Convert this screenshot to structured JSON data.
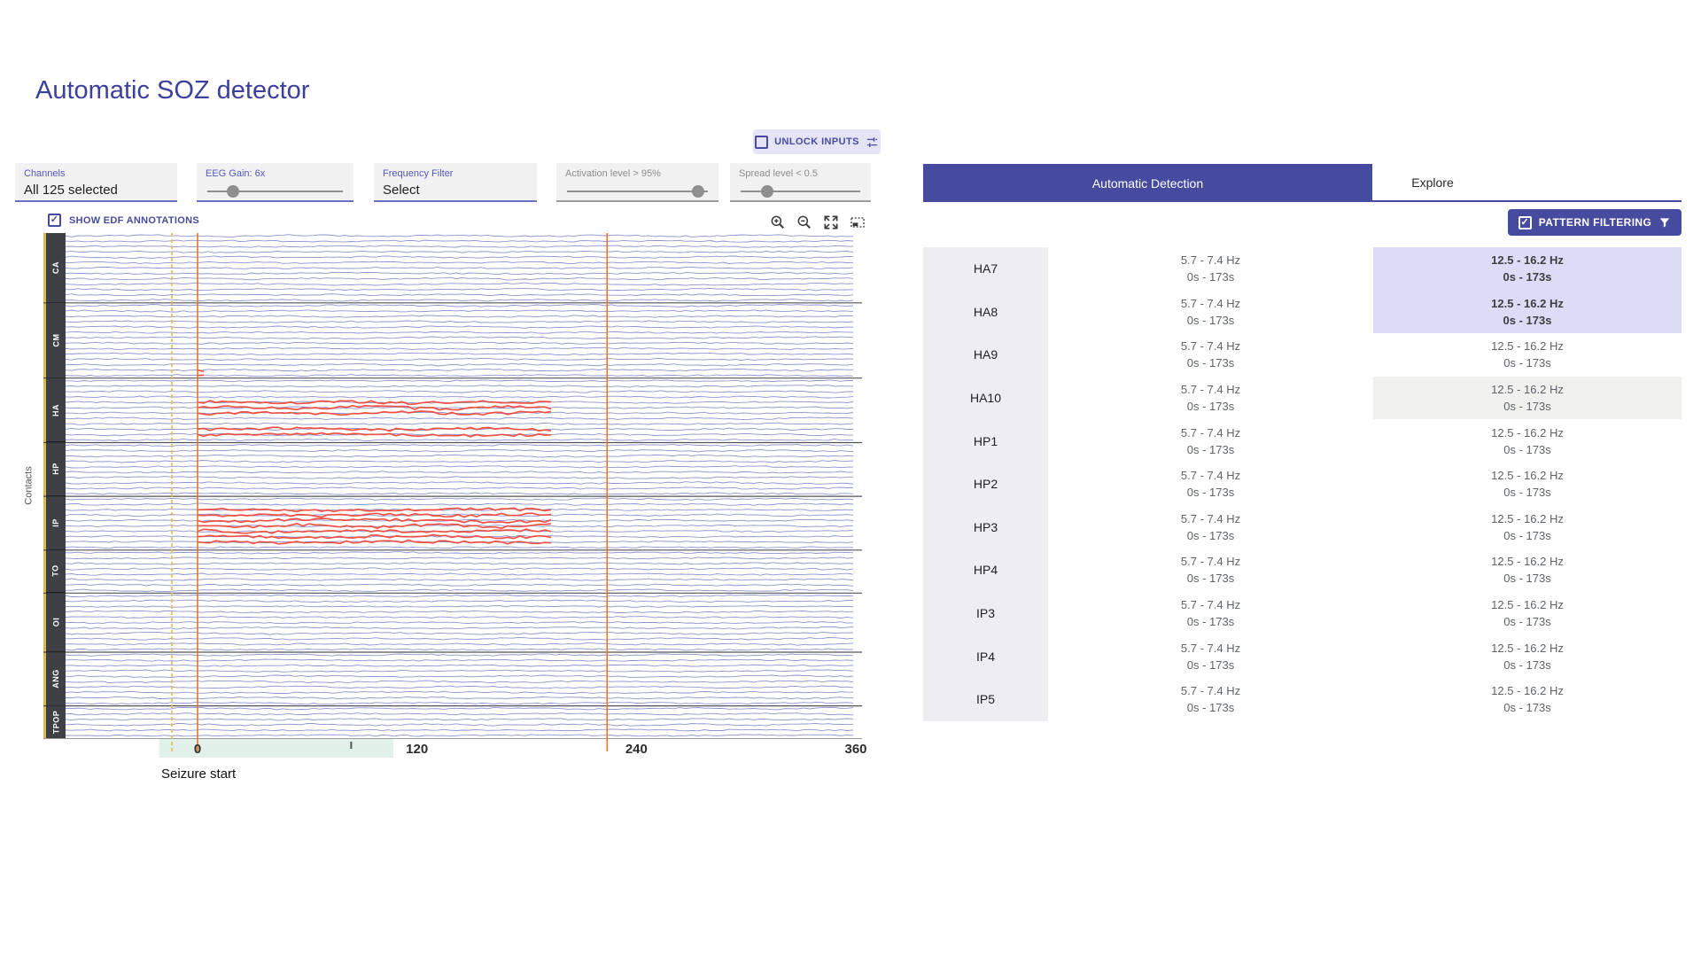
{
  "page": {
    "title": "Automatic SOZ detector"
  },
  "controls": {
    "unlock_button": {
      "label": "UNLOCK INPUTS",
      "checked": false
    },
    "channels": {
      "label": "Channels",
      "value": "All 125 selected"
    },
    "eeg_gain": {
      "label": "EEG Gain: 6x",
      "value_pct": 20
    },
    "frequency_filter": {
      "label": "Frequency Filter",
      "value": "Select"
    },
    "activation_level": {
      "label": "Activation level > 95%",
      "value_pct": 92,
      "disabled": true
    },
    "spread_level": {
      "label": "Spread level < 0.5",
      "value_pct": 23,
      "disabled": true
    },
    "show_edf_annotations": {
      "label": "SHOW EDF ANNOTATIONS",
      "checked": true
    }
  },
  "icons": {
    "unlock_settings": "tune-icon",
    "zoom_in": "zoom-in-icon",
    "zoom_out": "zoom-out-icon",
    "reset_view": "expand-icon",
    "box_select": "box-select-icon",
    "pattern_filter": "funnel-icon"
  },
  "chart_data": {
    "type": "line",
    "title": "",
    "description": "Stacked intracranial EEG traces grouped by electrode; red traces mark detected seizure-onset activity",
    "ylabel": "Contacts",
    "xlabel_annotation": "Seizure start",
    "x_ticks": [
      0,
      120,
      240,
      360
    ],
    "x_range_s": [
      -84,
      363
    ],
    "grid": false,
    "groups": [
      {
        "name": "CA",
        "channels": 13
      },
      {
        "name": "CM",
        "channels": 14
      },
      {
        "name": "HA",
        "channels": 12
      },
      {
        "name": "HP",
        "channels": 10
      },
      {
        "name": "IP",
        "channels": 10
      },
      {
        "name": "TO",
        "channels": 8
      },
      {
        "name": "OI",
        "channels": 11
      },
      {
        "name": "ANG",
        "channels": 10
      },
      {
        "name": "TPOP",
        "channels": 6
      }
    ],
    "markers": [
      {
        "name": "edf-annotation",
        "x_s": -14,
        "style": "dashed",
        "color": "#e2bd45"
      },
      {
        "name": "seizure-start",
        "x_s": 0,
        "style": "solid",
        "color": "#e8742a"
      },
      {
        "name": "event-marker",
        "x_s": 224,
        "style": "solid",
        "color": "#e8742a"
      }
    ],
    "selection_band_s": [
      -21,
      107
    ],
    "selection_tick_s": 84,
    "highlighted_channel_segments": [
      {
        "group": "CM",
        "first_channel_in_group": 12,
        "channel_count": 2,
        "t0_s": 0,
        "t1_s": 6
      },
      {
        "group": "HA",
        "first_channel_in_group": 4,
        "channel_count": 3,
        "t0_s": 0,
        "t1_s": 195
      },
      {
        "group": "HA",
        "first_channel_in_group": 9,
        "channel_count": 2,
        "t0_s": 0,
        "t1_s": 195
      },
      {
        "group": "IP",
        "first_channel_in_group": 2,
        "channel_count": 7,
        "t0_s": 0,
        "t1_s": 195
      }
    ]
  },
  "tabs": [
    {
      "label": "Automatic Detection",
      "active": true
    },
    {
      "label": "Explore",
      "active": false
    }
  ],
  "pattern_filtering": {
    "label": "PATTERN FILTERING",
    "checked": true
  },
  "results_table": {
    "rows": [
      {
        "channel": "HA7",
        "band1_freq": "5.7 - 7.4 Hz",
        "band1_time": "0s - 173s",
        "band2_freq": "12.5 - 16.2 Hz",
        "band2_time": "0s - 173s",
        "band2_state": "selected"
      },
      {
        "channel": "HA8",
        "band1_freq": "5.7 - 7.4 Hz",
        "band1_time": "0s - 173s",
        "band2_freq": "12.5 - 16.2 Hz",
        "band2_time": "0s - 173s",
        "band2_state": "selected"
      },
      {
        "channel": "HA9",
        "band1_freq": "5.7 - 7.4 Hz",
        "band1_time": "0s - 173s",
        "band2_freq": "12.5 - 16.2 Hz",
        "band2_time": "0s - 173s",
        "band2_state": "none"
      },
      {
        "channel": "HA10",
        "band1_freq": "5.7 - 7.4 Hz",
        "band1_time": "0s - 173s",
        "band2_freq": "12.5 - 16.2 Hz",
        "band2_time": "0s - 173s",
        "band2_state": "hover"
      },
      {
        "channel": "HP1",
        "band1_freq": "5.7 - 7.4 Hz",
        "band1_time": "0s - 173s",
        "band2_freq": "12.5 - 16.2 Hz",
        "band2_time": "0s - 173s",
        "band2_state": "none"
      },
      {
        "channel": "HP2",
        "band1_freq": "5.7 - 7.4 Hz",
        "band1_time": "0s - 173s",
        "band2_freq": "12.5 - 16.2 Hz",
        "band2_time": "0s - 173s",
        "band2_state": "none"
      },
      {
        "channel": "HP3",
        "band1_freq": "5.7 - 7.4 Hz",
        "band1_time": "0s - 173s",
        "band2_freq": "12.5 - 16.2 Hz",
        "band2_time": "0s - 173s",
        "band2_state": "none"
      },
      {
        "channel": "HP4",
        "band1_freq": "5.7 - 7.4 Hz",
        "band1_time": "0s - 173s",
        "band2_freq": "12.5 - 16.2 Hz",
        "band2_time": "0s - 173s",
        "band2_state": "none"
      },
      {
        "channel": "IP3",
        "band1_freq": "5.7 - 7.4 Hz",
        "band1_time": "0s - 173s",
        "band2_freq": "12.5 - 16.2 Hz",
        "band2_time": "0s - 173s",
        "band2_state": "none"
      },
      {
        "channel": "IP4",
        "band1_freq": "5.7 - 7.4 Hz",
        "band1_time": "0s - 173s",
        "band2_freq": "12.5 - 16.2 Hz",
        "band2_time": "0s - 173s",
        "band2_state": "none"
      },
      {
        "channel": "IP5",
        "band1_freq": "5.7 - 7.4 Hz",
        "band1_time": "0s - 173s",
        "band2_freq": "12.5 - 16.2 Hz",
        "band2_time": "0s - 173s",
        "band2_state": "none"
      }
    ]
  },
  "colors": {
    "primary": "#474b9f",
    "accent_light": "#e4e4f6",
    "row_selected": "#dcdcf6",
    "row_hover": "#f0f0ef",
    "trace": "#7d84c6",
    "trace_highlight": "#f4483a",
    "marker_orange": "#e8742a",
    "marker_yellow": "#e2bd45",
    "selection_band": "#e2f0ea"
  }
}
